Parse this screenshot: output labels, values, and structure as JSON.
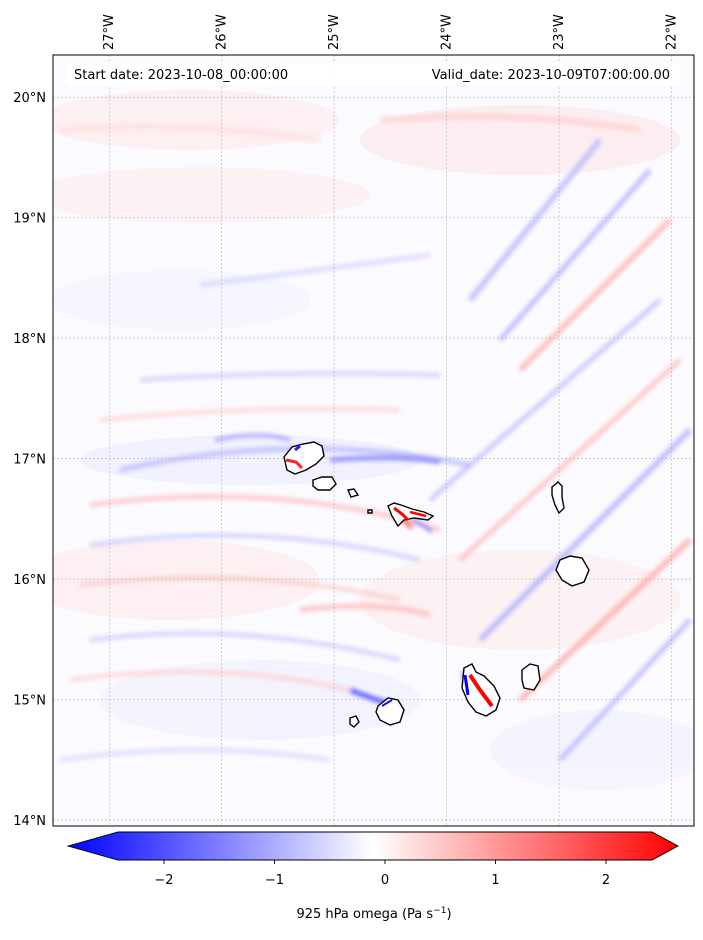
{
  "map": {
    "header": {
      "start_label": "Start date: 2023-10-08_00:00:00",
      "valid_label": "Valid_date: 2023-10-09T07:00:00.00"
    },
    "longitude_ticks": [
      "27°W",
      "26°W",
      "25°W",
      "24°W",
      "23°W",
      "22°W"
    ],
    "latitude_ticks": [
      "20°N",
      "19°N",
      "18°N",
      "17°N",
      "16°N",
      "15°N",
      "14°N"
    ],
    "extent": {
      "lon_min": -27.5,
      "lon_max": -21.8,
      "lat_min": 13.95,
      "lat_max": 20.35
    },
    "colorbar": {
      "ticks": [
        "−2",
        "−1",
        "0",
        "1",
        "2"
      ],
      "tick_values": [
        -2,
        -1,
        0,
        1,
        2
      ],
      "range": [
        -2.5,
        2.5
      ],
      "label_main": "925 hPa omega (Pa s",
      "label_exp": "−1",
      "label_end": ")",
      "colors": {
        "negative": "#0000ff",
        "zero": "#ffffff",
        "positive": "#ff0000"
      }
    },
    "field_colors": {
      "land_outline": "#000000",
      "grid": "#b0b0b0"
    }
  }
}
